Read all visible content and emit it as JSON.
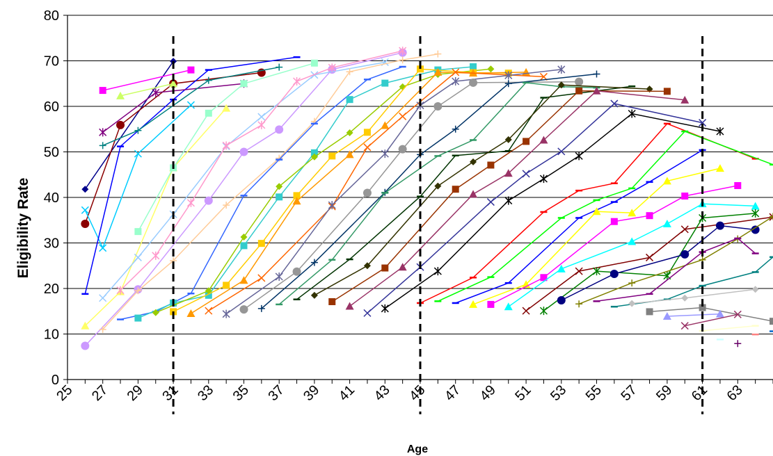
{
  "chart_data": {
    "type": "line",
    "title": "",
    "xlabel": "Age",
    "ylabel": "Eligibility Rate",
    "xlim": [
      25,
      65
    ],
    "ylim": [
      0,
      80
    ],
    "y_ticks": [
      0,
      10,
      20,
      30,
      40,
      50,
      60,
      70,
      80
    ],
    "x_ticks": [
      25,
      27,
      29,
      31,
      33,
      35,
      37,
      39,
      41,
      43,
      45,
      47,
      49,
      51,
      53,
      55,
      57,
      59,
      61,
      63
    ],
    "grid": "horizontal",
    "legend": "none",
    "reference_lines_x": [
      31,
      45,
      61
    ],
    "series": [
      {
        "color": "#00008B",
        "marker": "diamond",
        "x": [
          26,
          31
        ],
        "y": [
          41.8,
          69.9
        ]
      },
      {
        "color": "#8B0000",
        "marker": "circle",
        "x": [
          26,
          28,
          31,
          36
        ],
        "y": [
          34.2,
          55.9,
          65.0,
          67.4
        ]
      },
      {
        "color": "#00CCFF",
        "marker": "x",
        "x": [
          26,
          27,
          29,
          32
        ],
        "y": [
          37.2,
          28.9,
          49.6,
          60.3
        ]
      },
      {
        "color": "#0000FF",
        "marker": "dash",
        "x": [
          26,
          28,
          31,
          33,
          38
        ],
        "y": [
          18.8,
          51.2,
          61.5,
          68.0,
          70.8
        ]
      },
      {
        "color": "#FF00FF",
        "marker": "square",
        "x": [
          27,
          32
        ],
        "y": [
          63.5,
          68.0
        ]
      },
      {
        "color": "#800080",
        "marker": "star",
        "x": [
          27,
          30,
          35
        ],
        "y": [
          54.3,
          63.0,
          65.0
        ]
      },
      {
        "color": "#008080",
        "marker": "plus",
        "x": [
          27,
          29,
          33,
          37
        ],
        "y": [
          51.4,
          54.7,
          65.7,
          68.6
        ]
      },
      {
        "color": "#FFFF66",
        "marker": "triangle",
        "x": [
          26,
          28,
          31,
          34
        ],
        "y": [
          11.8,
          19.3,
          46.5,
          59.6
        ]
      },
      {
        "color": "#CC99FF",
        "marker": "circle",
        "x": [
          26,
          29,
          33,
          35,
          37,
          40,
          44
        ],
        "y": [
          7.4,
          19.8,
          39.3,
          50.0,
          54.9,
          68.1,
          71.8
        ]
      },
      {
        "color": "#CCFF66",
        "marker": "triangle",
        "x": [
          28,
          31
        ],
        "y": [
          62.3,
          65.0
        ]
      },
      {
        "color": "#99FFCC",
        "marker": "square",
        "x": [
          29,
          31,
          33,
          35,
          39
        ],
        "y": [
          32.5,
          46.5,
          58.5,
          65.0,
          69.5
        ]
      },
      {
        "color": "#99CCFF",
        "marker": "x",
        "x": [
          27,
          29,
          31,
          34,
          36,
          39,
          43
        ],
        "y": [
          17.9,
          26.8,
          36.3,
          51.2,
          57.7,
          66.9,
          69.7
        ]
      },
      {
        "color": "#FFCC99",
        "marker": "plus",
        "x": [
          27,
          29,
          31,
          34,
          37,
          39,
          41,
          44,
          46
        ],
        "y": [
          11.0,
          19.5,
          26.1,
          38.3,
          48.6,
          56.7,
          67.6,
          70.2,
          71.5
        ]
      },
      {
        "color": "#FF99CC",
        "marker": "star",
        "x": [
          28,
          30,
          32,
          34,
          36,
          38,
          40,
          44
        ],
        "y": [
          19.6,
          27.2,
          38.8,
          51.4,
          55.9,
          65.5,
          68.5,
          72.2
        ]
      },
      {
        "color": "#3366FF",
        "marker": "dash",
        "x": [
          28,
          30,
          32,
          35,
          37,
          39,
          42,
          44
        ],
        "y": [
          13.2,
          14.9,
          18.9,
          40.4,
          48.3,
          56.2,
          65.9,
          68.7
        ]
      },
      {
        "color": "#33CCCC",
        "marker": "square",
        "x": [
          29,
          31,
          33,
          35,
          37,
          39,
          41,
          43,
          46,
          48
        ],
        "y": [
          13.5,
          16.8,
          18.5,
          29.4,
          40.1,
          49.8,
          61.5,
          65.1,
          68.0,
          68.7
        ]
      },
      {
        "color": "#99CC00",
        "marker": "diamond",
        "x": [
          30,
          33,
          35,
          37,
          39,
          41,
          44,
          46,
          49
        ],
        "y": [
          14.7,
          19.5,
          31.3,
          42.4,
          48.9,
          54.2,
          64.3,
          67.0,
          68.2
        ]
      },
      {
        "color": "#FFCC00",
        "marker": "square",
        "x": [
          31,
          34,
          36,
          38,
          40,
          42,
          45,
          48,
          50
        ],
        "y": [
          14.9,
          20.7,
          29.9,
          40.4,
          49.1,
          54.3,
          68.2,
          67.4,
          67.3
        ]
      },
      {
        "color": "#FF9900",
        "marker": "triangle",
        "x": [
          32,
          35,
          38,
          41,
          43,
          46,
          48,
          51
        ],
        "y": [
          14.5,
          21.8,
          39.2,
          49.4,
          55.8,
          67.5,
          67.3,
          67.5
        ]
      },
      {
        "color": "#FF6600",
        "marker": "x",
        "x": [
          33,
          36,
          40,
          42,
          44,
          47,
          52
        ],
        "y": [
          15.1,
          22.3,
          38.0,
          51.0,
          57.8,
          67.5,
          66.5
        ]
      },
      {
        "color": "#666699",
        "marker": "star",
        "x": [
          34,
          37,
          40,
          43,
          45,
          47,
          50,
          53
        ],
        "y": [
          14.4,
          22.6,
          38.3,
          49.6,
          60.2,
          65.5,
          66.8,
          68.1
        ]
      },
      {
        "color": "#969696",
        "marker": "circle",
        "x": [
          35,
          38,
          42,
          44,
          46,
          48,
          54
        ],
        "y": [
          15.4,
          23.7,
          41.0,
          50.6,
          60.0,
          65.2,
          65.4
        ]
      },
      {
        "color": "#003366",
        "marker": "plus",
        "x": [
          36,
          39,
          43,
          45,
          47,
          50,
          55
        ],
        "y": [
          15.6,
          25.7,
          41.1,
          49.4,
          55.0,
          65.0,
          67.1
        ]
      },
      {
        "color": "#339966",
        "marker": "dash",
        "x": [
          37,
          40,
          43,
          46,
          48,
          51,
          53,
          55
        ],
        "y": [
          16.5,
          26.3,
          41.0,
          49.1,
          52.6,
          65.2,
          64.3,
          64.1
        ]
      },
      {
        "color": "#003300",
        "marker": "dash",
        "x": [
          38,
          41,
          45,
          47,
          50,
          52,
          57
        ],
        "y": [
          17.6,
          26.4,
          40.2,
          49.2,
          50.2,
          61.9,
          64.4
        ]
      },
      {
        "color": "#333300",
        "marker": "diamond",
        "x": [
          39,
          42,
          46,
          48,
          50,
          53,
          58
        ],
        "y": [
          18.5,
          25.0,
          42.5,
          47.8,
          52.7,
          64.7,
          63.8
        ]
      },
      {
        "color": "#993300",
        "marker": "square",
        "x": [
          40,
          43,
          47,
          49,
          51,
          54,
          59
        ],
        "y": [
          17.1,
          24.5,
          41.8,
          47.1,
          52.3,
          63.4,
          63.3
        ]
      },
      {
        "color": "#993366",
        "marker": "triangle",
        "x": [
          41,
          44,
          48,
          50,
          52,
          55,
          60
        ],
        "y": [
          16.1,
          24.7,
          40.7,
          45.3,
          52.6,
          63.4,
          61.4
        ]
      },
      {
        "color": "#333399",
        "marker": "x",
        "x": [
          42,
          45,
          49,
          51,
          53,
          56,
          61
        ],
        "y": [
          14.6,
          24.7,
          39.0,
          45.2,
          50.1,
          60.6,
          56.4
        ]
      },
      {
        "color": "#000000",
        "marker": "star",
        "x": [
          43,
          46,
          50,
          52,
          54,
          57,
          62
        ],
        "y": [
          15.6,
          23.8,
          39.3,
          44.1,
          49.1,
          58.4,
          54.5
        ]
      },
      {
        "color": "#FF0000",
        "marker": "dash",
        "x": [
          45,
          48,
          52,
          54,
          56,
          59,
          64
        ],
        "y": [
          16.8,
          22.4,
          36.8,
          41.5,
          43.1,
          56.2,
          48.5
        ]
      },
      {
        "color": "#00FF00",
        "marker": "dash",
        "x": [
          46,
          49,
          53,
          55,
          57,
          60,
          65
        ],
        "y": [
          17.2,
          22.5,
          35.5,
          39.4,
          42.0,
          54.5,
          47.2
        ]
      },
      {
        "color": "#0000FF",
        "marker": "dash",
        "x": [
          47,
          50,
          54,
          56,
          58,
          61
        ],
        "y": [
          16.8,
          21.2,
          35.5,
          39.0,
          43.4,
          50.4
        ]
      },
      {
        "color": "#FFFF00",
        "marker": "triangle",
        "x": [
          48,
          51,
          55,
          57,
          59,
          62
        ],
        "y": [
          16.5,
          20.9,
          36.9,
          36.6,
          43.6,
          46.4
        ]
      },
      {
        "color": "#FF00FF",
        "marker": "square",
        "x": [
          49,
          52,
          56,
          58,
          60,
          63
        ],
        "y": [
          16.5,
          22.4,
          34.7,
          36.0,
          40.3,
          42.6
        ]
      },
      {
        "color": "#00FFFF",
        "marker": "triangle",
        "x": [
          50,
          53,
          57,
          59,
          61,
          64
        ],
        "y": [
          16.0,
          24.3,
          30.3,
          34.2,
          38.6,
          38.1
        ]
      },
      {
        "color": "#800000",
        "marker": "x",
        "x": [
          51,
          54,
          58,
          60,
          65
        ],
        "y": [
          15.1,
          23.8,
          26.8,
          33.0,
          35.7
        ]
      },
      {
        "color": "#008000",
        "marker": "star",
        "x": [
          52,
          55,
          59,
          61,
          64
        ],
        "y": [
          15.1,
          23.8,
          22.8,
          35.5,
          36.5
        ]
      },
      {
        "color": "#000080",
        "marker": "circle",
        "x": [
          53,
          56,
          60,
          62,
          64
        ],
        "y": [
          17.4,
          23.2,
          27.5,
          33.8,
          32.9
        ]
      },
      {
        "color": "#808000",
        "marker": "plus",
        "x": [
          54,
          57,
          61,
          63,
          65
        ],
        "y": [
          16.6,
          21.2,
          26.3,
          30.9,
          35.8
        ]
      },
      {
        "color": "#800080",
        "marker": "dash",
        "x": [
          55,
          58,
          61,
          63,
          64
        ],
        "y": [
          17.2,
          18.8,
          28.0,
          31.0,
          27.7
        ]
      },
      {
        "color": "#008080",
        "marker": "dash",
        "x": [
          56,
          59,
          61,
          64,
          65
        ],
        "y": [
          16.0,
          17.6,
          20.6,
          23.6,
          26.9
        ]
      },
      {
        "color": "#C0C0C0",
        "marker": "diamond",
        "x": [
          57,
          60,
          64
        ],
        "y": [
          16.7,
          17.9,
          19.8
        ]
      },
      {
        "color": "#808080",
        "marker": "square",
        "x": [
          58,
          61,
          65
        ],
        "y": [
          14.9,
          15.8,
          12.8
        ]
      },
      {
        "color": "#9999FF",
        "marker": "triangle",
        "x": [
          59,
          62
        ],
        "y": [
          13.9,
          14.4
        ]
      },
      {
        "color": "#993366",
        "marker": "x",
        "x": [
          60,
          63
        ],
        "y": [
          11.8,
          14.3
        ]
      },
      {
        "color": "#FFFFCC",
        "marker": "dash",
        "x": [
          61,
          64
        ],
        "y": [
          10.7,
          11.8
        ]
      },
      {
        "color": "#CCFFFF",
        "marker": "dash",
        "x": [
          62
        ],
        "y": [
          8.8
        ]
      },
      {
        "color": "#660066",
        "marker": "plus",
        "x": [
          63
        ],
        "y": [
          7.9
        ]
      },
      {
        "color": "#FF8080",
        "marker": "dash",
        "x": [
          64
        ],
        "y": [
          9.9
        ]
      },
      {
        "color": "#0066CC",
        "marker": "dash",
        "x": [
          65
        ],
        "y": [
          10.6
        ]
      }
    ]
  }
}
